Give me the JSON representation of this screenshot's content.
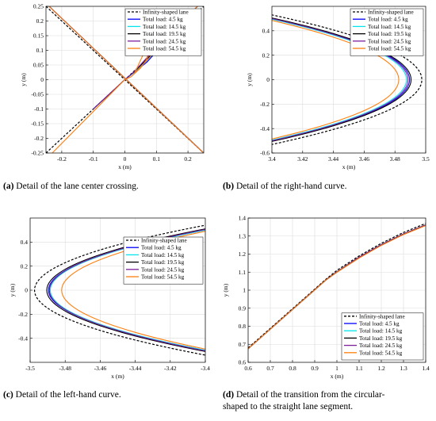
{
  "colors": {
    "infinity": "#000000",
    "load_4_5": "#0000ff",
    "load_14_5": "#00e5ee",
    "load_19_5": "#000000",
    "load_24_5": "#7e1e9c",
    "load_54_5": "#ff7f0e"
  },
  "captions": [
    {
      "tag": "(a)",
      "text": "Detail of the lane center crossing."
    },
    {
      "tag": "(b)",
      "text": "Detail of the right-hand curve."
    },
    {
      "tag": "(c)",
      "text": "Detail of the left-hand curve."
    },
    {
      "tag": "(d)",
      "text": "Detail of the transition from the circular-",
      "text2": "shaped to the straight lane segment."
    }
  ],
  "chart_data": [
    {
      "id": "a",
      "type": "line",
      "xlabel": "x (m)",
      "ylabel": "y (m)",
      "xlim": [
        -0.25,
        0.25
      ],
      "ylim": [
        -0.25,
        0.25
      ],
      "xticks": [
        -0.2,
        -0.1,
        0,
        0.1,
        0.2
      ],
      "xtick_labels": [
        "-0.2",
        "-0.1",
        "0",
        "0.1",
        "0.2"
      ],
      "yticks": [
        -0.25,
        -0.2,
        -0.15,
        -0.1,
        -0.05,
        0,
        0.05,
        0.1,
        0.15,
        0.2,
        0.25
      ],
      "ytick_labels": [
        "-0.25",
        "-0.2",
        "-0.15",
        "-0.1",
        "-0.05",
        "0",
        "0.05",
        "0.1",
        "0.15",
        "0.2",
        "0.25"
      ],
      "grid": true,
      "legend": "top-right",
      "series": [
        {
          "name": "Infinity-shaped lane",
          "dash": true,
          "color_key": "infinity",
          "lines": [
            [
              [
                -0.25,
                -0.25
              ],
              [
                0.25,
                0.25
              ]
            ],
            [
              [
                -0.25,
                0.25
              ],
              [
                0.25,
                -0.25
              ]
            ]
          ]
        },
        {
          "name": "Total load: 4.5 kg",
          "color_key": "load_4_5",
          "lines": [
            [
              [
                -0.24,
                0.25
              ],
              [
                0.25,
                -0.25
              ]
            ],
            [
              [
                -0.1,
                -0.1
              ],
              [
                0,
                0
              ],
              [
                0.03,
                0.025
              ],
              [
                0.07,
                0.06
              ],
              [
                0.23,
                0.25
              ]
            ]
          ]
        },
        {
          "name": "Total load: 14.5 kg",
          "color_key": "load_14_5",
          "lines": [
            [
              [
                -0.24,
                0.25
              ],
              [
                0.25,
                -0.25
              ]
            ],
            [
              [
                -0.1,
                -0.1
              ],
              [
                0,
                0
              ],
              [
                0.03,
                0.026
              ],
              [
                0.07,
                0.065
              ],
              [
                0.23,
                0.25
              ]
            ]
          ]
        },
        {
          "name": "Total load: 19.5 kg",
          "color_key": "load_19_5",
          "lines": [
            [
              [
                -0.24,
                0.25
              ],
              [
                0.25,
                -0.25
              ]
            ],
            [
              [
                -0.1,
                -0.1
              ],
              [
                0,
                0
              ],
              [
                0.03,
                0.027
              ],
              [
                0.07,
                0.07
              ],
              [
                0.23,
                0.25
              ]
            ]
          ]
        },
        {
          "name": "Total load: 24.5 kg",
          "color_key": "load_24_5",
          "lines": [
            [
              [
                -0.24,
                0.25
              ],
              [
                0.25,
                -0.25
              ]
            ],
            [
              [
                -0.1,
                -0.1
              ],
              [
                0,
                0
              ],
              [
                0.03,
                0.028
              ],
              [
                0.07,
                0.075
              ],
              [
                0.23,
                0.25
              ]
            ]
          ]
        },
        {
          "name": "Total load: 54.5 kg",
          "color_key": "load_54_5",
          "lines": [
            [
              [
                -0.24,
                0.25
              ],
              [
                0.25,
                -0.25
              ]
            ],
            [
              [
                -0.23,
                -0.25
              ],
              [
                0,
                0
              ],
              [
                0.02,
                0.01
              ],
              [
                0.05,
                0.04
              ],
              [
                0.07,
                0.07
              ],
              [
                0.08,
                0.13
              ],
              [
                0.06,
                0.09
              ],
              [
                0.03,
                0.02
              ],
              [
                0.23,
                0.25
              ]
            ]
          ]
        }
      ]
    },
    {
      "id": "b",
      "type": "line",
      "xlabel": "x (m)",
      "ylabel": "y (m)",
      "xlim": [
        3.4,
        3.5
      ],
      "ylim": [
        -0.6,
        0.6
      ],
      "xticks": [
        3.4,
        3.42,
        3.44,
        3.46,
        3.48,
        3.5
      ],
      "xtick_labels": [
        "3.4",
        "3.42",
        "3.44",
        "3.46",
        "3.48",
        "3.5"
      ],
      "yticks": [
        -0.6,
        -0.4,
        -0.2,
        0,
        0.2,
        0.4
      ],
      "ytick_labels": [
        "-0.6",
        "-0.4",
        "-0.2",
        "0",
        "0.2",
        "0.4"
      ],
      "grid": true,
      "legend": "top-right",
      "series": [
        {
          "name": "Infinity-shaped lane",
          "dash": true,
          "color_key": "infinity",
          "vertex": 3.4975,
          "edge": 0.53
        },
        {
          "name": "Total load: 4.5 kg",
          "color_key": "load_4_5",
          "vertex": 3.4895,
          "edge": 0.5
        },
        {
          "name": "Total load: 14.5 kg",
          "color_key": "load_14_5",
          "vertex": 3.4875,
          "edge": 0.495
        },
        {
          "name": "Total load: 19.5 kg",
          "color_key": "load_19_5",
          "vertex": 3.4905,
          "edge": 0.505
        },
        {
          "name": "Total load: 24.5 kg",
          "color_key": "load_24_5",
          "vertex": 3.4885,
          "edge": 0.5
        },
        {
          "name": "Total load: 54.5 kg",
          "color_key": "load_54_5",
          "vertex": 3.4825,
          "edge": 0.485
        }
      ]
    },
    {
      "id": "c",
      "type": "line",
      "xlabel": "x (m)",
      "ylabel": "y (m)",
      "xlim": [
        -3.5,
        -3.4
      ],
      "ylim": [
        -0.6,
        0.6
      ],
      "xticks": [
        -3.5,
        -3.48,
        -3.46,
        -3.44,
        -3.42,
        -3.4
      ],
      "xtick_labels": [
        "-3.5",
        "-3.48",
        "-3.46",
        "-3.44",
        "-3.42",
        "-3.4"
      ],
      "yticks": [
        -0.4,
        -0.2,
        0,
        0.2,
        0.4
      ],
      "ytick_labels": [
        "-0.4",
        "-0.2",
        "0",
        "0.2",
        "0.4"
      ],
      "grid": true,
      "legend": "right",
      "series": [
        {
          "name": "Infinity-shaped lane",
          "dash": true,
          "color_key": "infinity",
          "vertex": -3.4975,
          "edge": 0.54
        },
        {
          "name": "Total load: 4.5 kg",
          "color_key": "load_4_5",
          "vertex": -3.4895,
          "edge": 0.5
        },
        {
          "name": "Total load: 14.5 kg",
          "color_key": "load_14_5",
          "vertex": -3.4885,
          "edge": 0.5
        },
        {
          "name": "Total load: 19.5 kg",
          "color_key": "load_19_5",
          "vertex": -3.4905,
          "edge": 0.51
        },
        {
          "name": "Total load: 24.5 kg",
          "color_key": "load_24_5",
          "vertex": -3.489,
          "edge": 0.505
        },
        {
          "name": "Total load: 54.5 kg",
          "color_key": "load_54_5",
          "vertex": -3.482,
          "edge": 0.49
        }
      ]
    },
    {
      "id": "d",
      "type": "line",
      "xlabel": "x (m)",
      "ylabel": "y (m)",
      "xlim": [
        0.6,
        1.4
      ],
      "ylim": [
        0.6,
        1.4
      ],
      "xticks": [
        0.6,
        0.7,
        0.8,
        0.9,
        1,
        1.1,
        1.2,
        1.3,
        1.4
      ],
      "xtick_labels": [
        "0.6",
        "0.7",
        "0.8",
        "0.9",
        "1",
        "1.1",
        "1.2",
        "1.3",
        "1.4"
      ],
      "yticks": [
        0.6,
        0.7,
        0.8,
        0.9,
        1,
        1.1,
        1.2,
        1.3,
        1.4
      ],
      "ytick_labels": [
        "0.6",
        "0.7",
        "0.8",
        "0.9",
        "1",
        "1.1",
        "1.2",
        "1.3",
        "1.4"
      ],
      "grid": true,
      "legend": "bottom-right",
      "series": [
        {
          "name": "Infinity-shaped lane",
          "dash": true,
          "color_key": "infinity",
          "points": [
            [
              0.6,
              0.68
            ],
            [
              0.95,
              1.06
            ],
            [
              1.0,
              1.11
            ],
            [
              1.1,
              1.19
            ],
            [
              1.2,
              1.26
            ],
            [
              1.3,
              1.32
            ],
            [
              1.4,
              1.37
            ]
          ]
        },
        {
          "name": "Total load: 4.5 kg",
          "color_key": "load_4_5",
          "points": [
            [
              0.6,
              0.675
            ],
            [
              0.95,
              1.055
            ],
            [
              1.0,
              1.1
            ],
            [
              1.1,
              1.18
            ],
            [
              1.2,
              1.25
            ],
            [
              1.3,
              1.31
            ],
            [
              1.4,
              1.36
            ]
          ]
        },
        {
          "name": "Total load: 14.5 kg",
          "color_key": "load_14_5",
          "points": [
            [
              0.6,
              0.675
            ],
            [
              0.95,
              1.055
            ],
            [
              1.0,
              1.1
            ],
            [
              1.1,
              1.18
            ],
            [
              1.2,
              1.25
            ],
            [
              1.3,
              1.31
            ],
            [
              1.4,
              1.36
            ]
          ]
        },
        {
          "name": "Total load: 19.5 kg",
          "color_key": "load_19_5",
          "points": [
            [
              0.6,
              0.675
            ],
            [
              0.95,
              1.057
            ],
            [
              1.0,
              1.102
            ],
            [
              1.1,
              1.183
            ],
            [
              1.2,
              1.252
            ],
            [
              1.3,
              1.312
            ],
            [
              1.4,
              1.362
            ]
          ]
        },
        {
          "name": "Total load: 24.5 kg",
          "color_key": "load_24_5",
          "points": [
            [
              0.6,
              0.675
            ],
            [
              0.95,
              1.056
            ],
            [
              1.0,
              1.101
            ],
            [
              1.1,
              1.182
            ],
            [
              1.2,
              1.251
            ],
            [
              1.3,
              1.311
            ],
            [
              1.4,
              1.361
            ]
          ]
        },
        {
          "name": "Total load: 54.5 kg",
          "color_key": "load_54_5",
          "points": [
            [
              0.6,
              0.675
            ],
            [
              0.95,
              1.055
            ],
            [
              1.0,
              1.099
            ],
            [
              1.1,
              1.178
            ],
            [
              1.2,
              1.248
            ],
            [
              1.3,
              1.308
            ],
            [
              1.4,
              1.358
            ]
          ]
        }
      ]
    }
  ]
}
